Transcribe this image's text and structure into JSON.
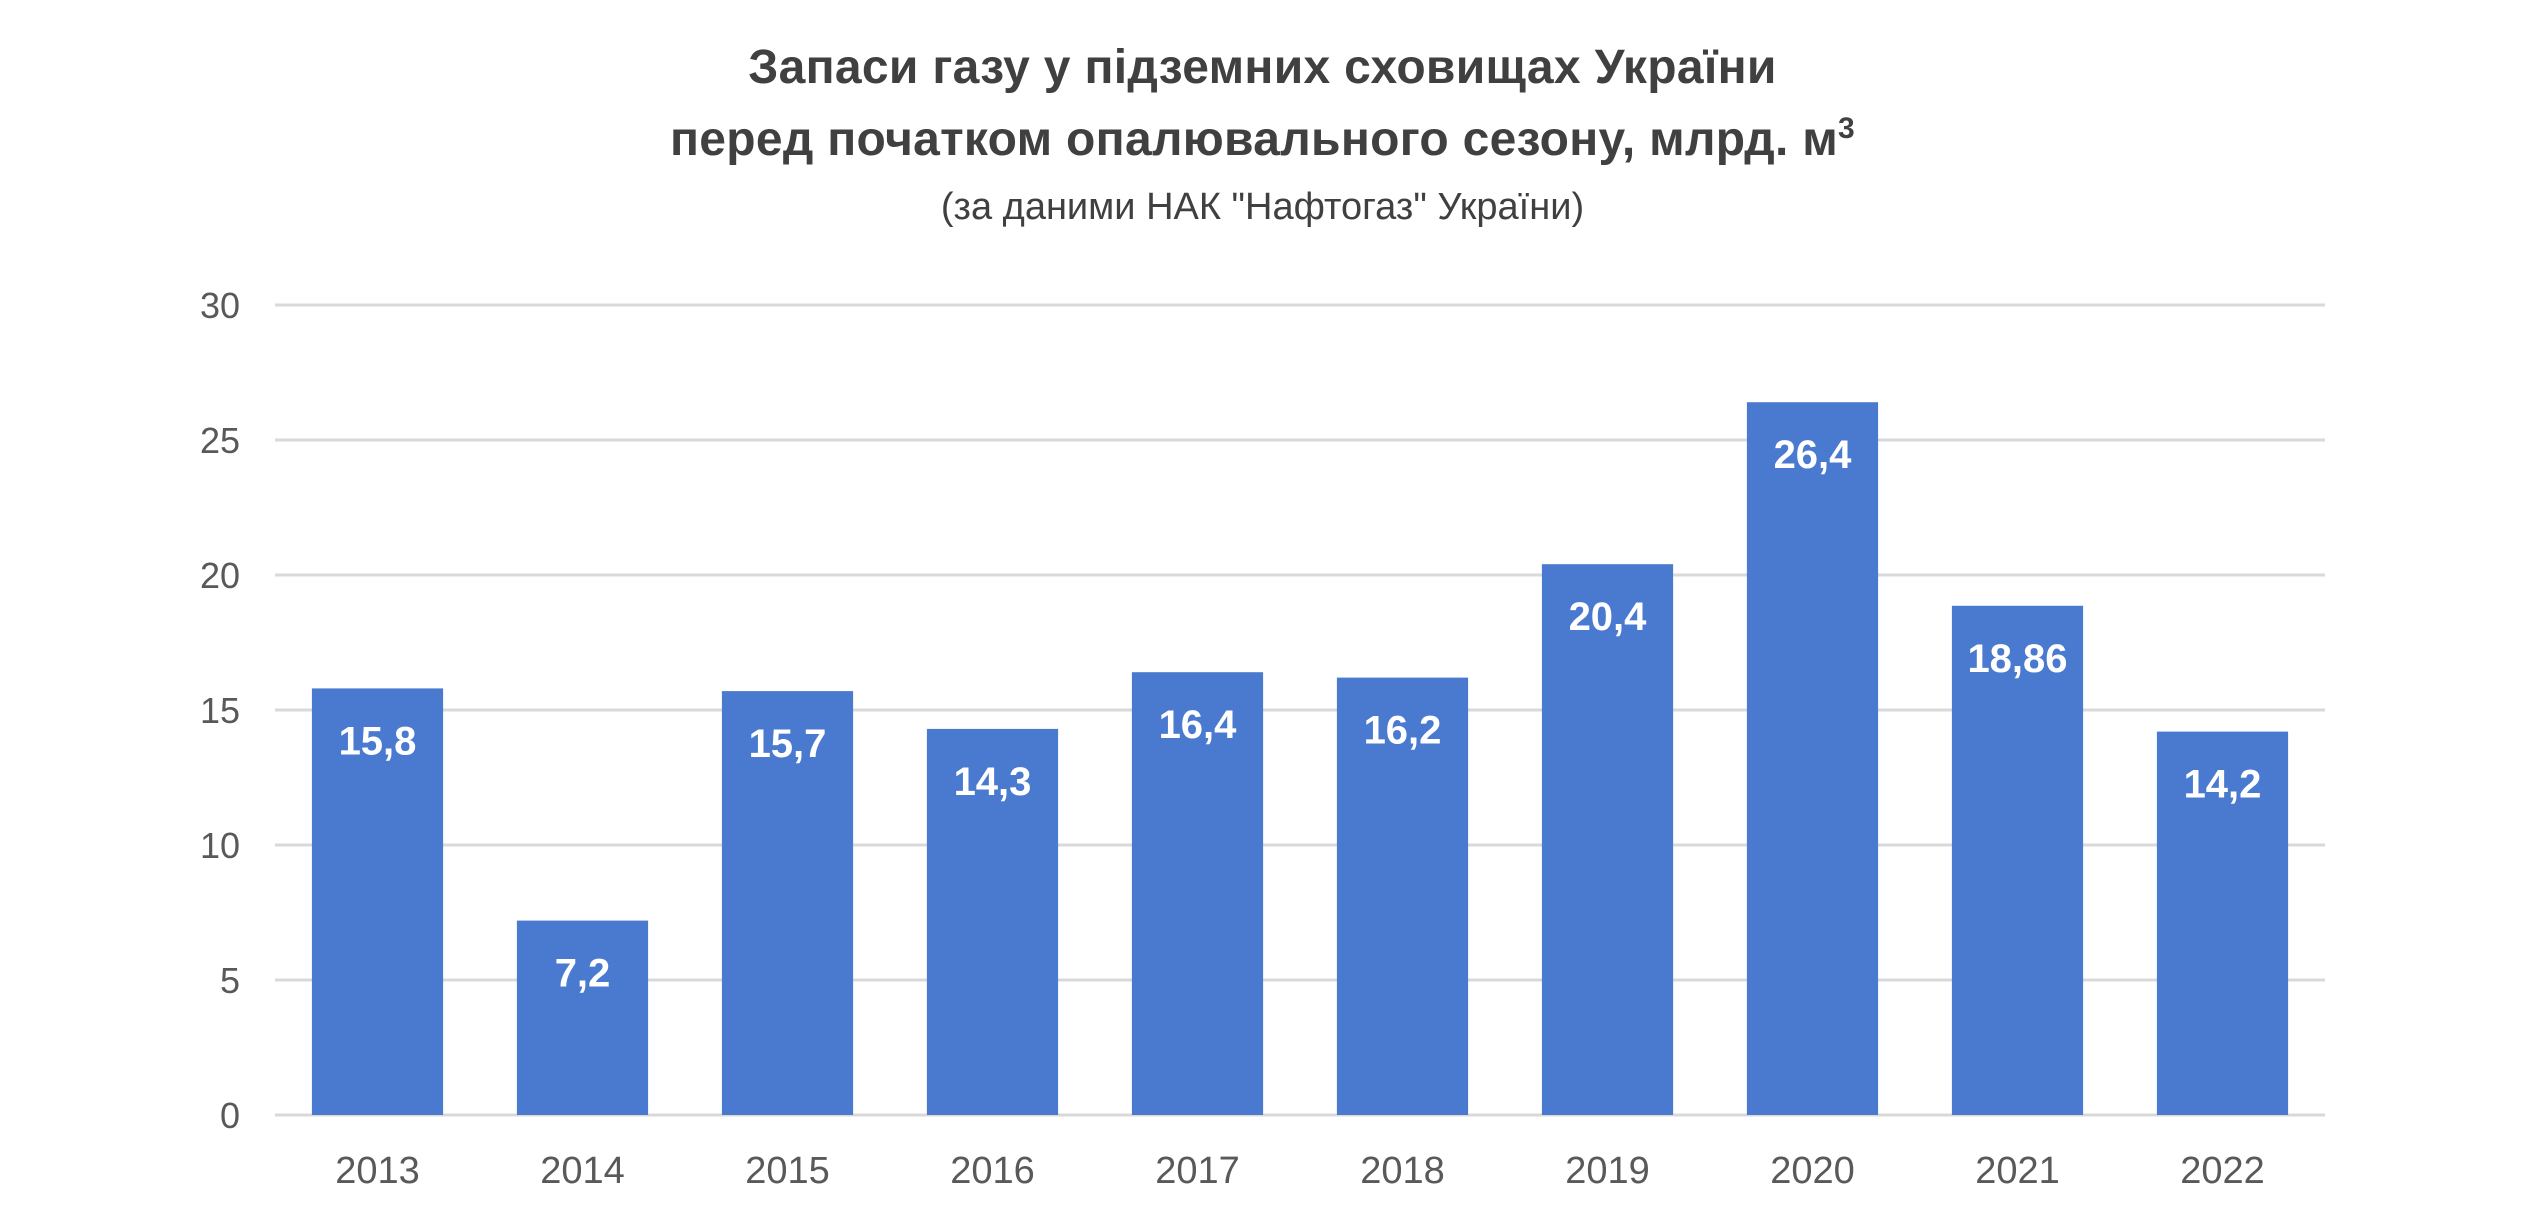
{
  "chart_data": {
    "type": "bar",
    "title_line1": "Запаси газу у підземних сховищах України",
    "title_line2": "перед початком опалювального сезону, млрд. м",
    "title_superscript": "3",
    "subtitle": "(за даними НАК \"Нафтогаз\" України)",
    "categories": [
      "2013",
      "2014",
      "2015",
      "2016",
      "2017",
      "2018",
      "2019",
      "2020",
      "2021",
      "2022"
    ],
    "values": [
      15.8,
      7.2,
      15.7,
      14.3,
      16.4,
      16.2,
      20.4,
      26.4,
      18.86,
      14.2
    ],
    "data_labels": [
      "15,8",
      "7,2",
      "15,7",
      "14,3",
      "16,4",
      "16,2",
      "20,4",
      "26,4",
      "18,86",
      "14,2"
    ],
    "y_ticks": [
      0,
      5,
      10,
      15,
      20,
      25,
      30
    ],
    "ylim": [
      0,
      30
    ],
    "xlabel": "",
    "ylabel": "",
    "grid": true,
    "legend": "none",
    "colors": {
      "bar": "#4a7acf",
      "grid": "#d9d9d9",
      "axis_text": "#595959",
      "title": "#404040",
      "data_label": "#ffffff"
    }
  }
}
